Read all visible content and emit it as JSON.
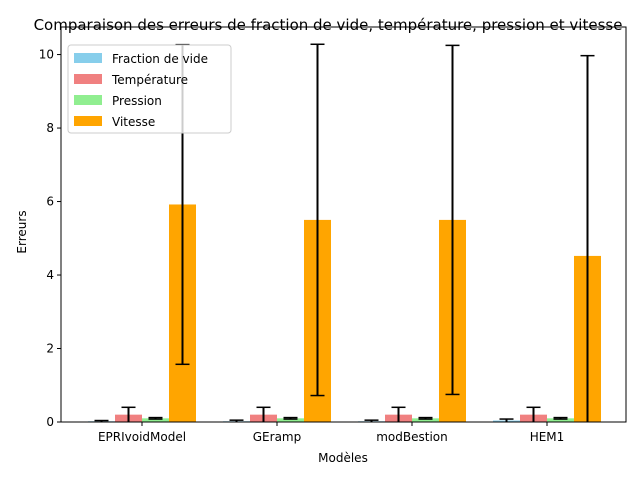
{
  "chart_data": {
    "type": "bar",
    "title": "Comparaison des erreurs de fraction de vide, température, pression et vitesse",
    "xlabel": "Modèles",
    "ylabel": "Erreurs",
    "categories": [
      "EPRIvoidModel",
      "GEramp",
      "modBestion",
      "HEM1"
    ],
    "ylim": [
      0,
      10.75
    ],
    "yticks": [
      0,
      2,
      4,
      6,
      8,
      10
    ],
    "legend_position": "top-left",
    "series": [
      {
        "name": "Fraction de vide",
        "color": "#87ceeb",
        "values": [
          0.02,
          0.02,
          0.02,
          0.04
        ],
        "errors": [
          0.02,
          0.03,
          0.03,
          0.04
        ]
      },
      {
        "name": "Température",
        "color": "#f08080",
        "values": [
          0.2,
          0.2,
          0.2,
          0.2
        ],
        "errors": [
          0.2,
          0.2,
          0.2,
          0.2
        ]
      },
      {
        "name": "Pression",
        "color": "#90ee90",
        "values": [
          0.1,
          0.1,
          0.1,
          0.1
        ],
        "errors": [
          0.02,
          0.02,
          0.02,
          0.02
        ]
      },
      {
        "name": "Vitesse",
        "color": "#ffa500",
        "values": [
          5.92,
          5.5,
          5.5,
          4.52
        ],
        "errors": [
          4.35,
          4.78,
          4.75,
          5.45
        ]
      }
    ]
  }
}
